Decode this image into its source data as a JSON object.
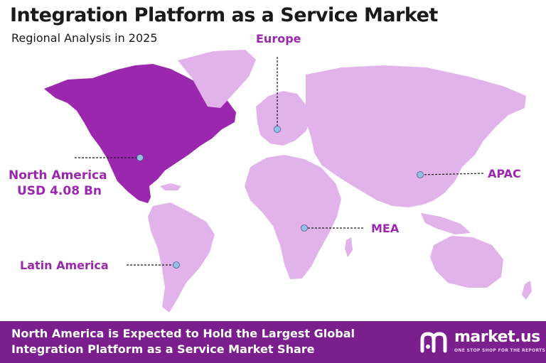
{
  "header": {
    "title": "Integration Platform as a Service Market",
    "subtitle": "Regional Analysis in 2025"
  },
  "regions": {
    "europe": "Europe",
    "apac": "APAC",
    "mea": "MEA",
    "north_america": "North America",
    "north_america_value": "USD 4.08 Bn",
    "latin_america": "Latin America"
  },
  "footer": {
    "line1": "North America is Expected to Hold the Largest Global",
    "line2": "Integration Platform as a Service Market Share",
    "brand": "market.us",
    "tagline": "ONE STOP SHOP FOR THE REPORTS"
  },
  "colors": {
    "highlight_region": "#9b27af",
    "other_regions": "#e2b3ea",
    "label": "#9b27af",
    "footer_bg": "#7b1f8e",
    "marker": "#8ec3e6"
  }
}
